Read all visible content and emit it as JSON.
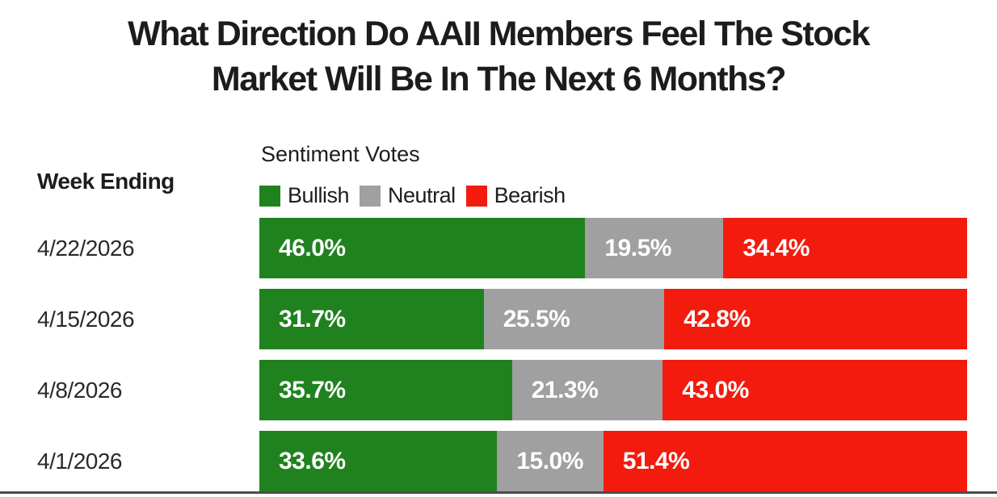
{
  "title": {
    "line1": "What Direction Do AAII Members Feel The Stock",
    "line2": "Market Will Be In The Next 6 Months?"
  },
  "row_axis_label": "Week Ending",
  "legend": {
    "title": "Sentiment Votes"
  },
  "colors": {
    "bullish": "#1f821f",
    "neutral": "#a0a0a0",
    "bearish": "#f21b0e",
    "background": "#ffffff",
    "bottom_line": "#4c4c4e",
    "value_label_text": "#ffffff",
    "title_text": "#1c1c1c"
  },
  "chart_data": {
    "type": "bar",
    "subtype": "horizontal-stacked",
    "title": "What Direction Do AAII Members Feel The Stock Market Will Be In The Next 6 Months?",
    "legend_title": "Sentiment Votes",
    "row_label_header": "Week Ending",
    "categories": [
      "4/22/2026",
      "4/15/2026",
      "4/8/2026",
      "4/1/2026"
    ],
    "series": [
      {
        "name": "Bullish",
        "color": "#1f821f",
        "values": [
          46.0,
          31.7,
          35.7,
          33.6
        ]
      },
      {
        "name": "Neutral",
        "color": "#a0a0a0",
        "values": [
          19.5,
          25.5,
          21.3,
          15.0
        ]
      },
      {
        "name": "Bearish",
        "color": "#f21b0e",
        "values": [
          34.4,
          42.8,
          43.0,
          51.4
        ]
      }
    ],
    "value_labels": [
      [
        "46.0%",
        "19.5%",
        "34.4%"
      ],
      [
        "31.7%",
        "25.5%",
        "42.8%"
      ],
      [
        "35.7%",
        "21.3%",
        "43.0%"
      ],
      [
        "33.6%",
        "15.0%",
        "51.4%"
      ]
    ],
    "value_label_format": "percent-1dp",
    "axis_range": [
      0,
      100
    ],
    "grid": false,
    "legend_position": "top-left-above-bars"
  }
}
